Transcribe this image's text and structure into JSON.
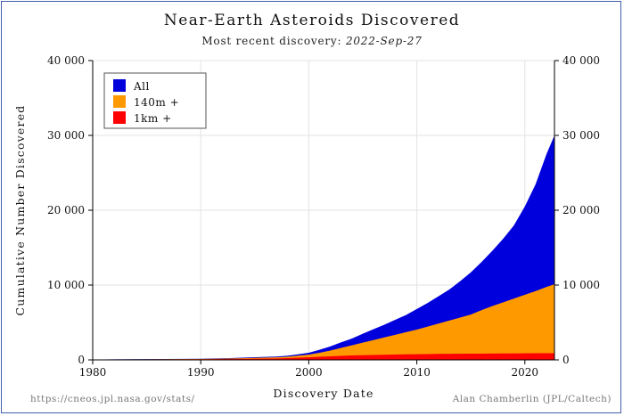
{
  "chart_data": {
    "type": "area",
    "title": "Near-Earth Asteroids Discovered",
    "subtitle_prefix": "Most recent discovery: ",
    "subtitle_date": "2022-Sep-27",
    "xlabel": "Discovery Date",
    "ylabel": "Cumulative Number Discovered",
    "xlim": [
      1980,
      2022.74
    ],
    "ylim": [
      0,
      40000
    ],
    "x_ticks": [
      1980,
      1990,
      2000,
      2010,
      2020
    ],
    "x_tick_labels": [
      "1980",
      "1990",
      "2000",
      "2010",
      "2020"
    ],
    "y_ticks": [
      0,
      10000,
      20000,
      30000,
      40000
    ],
    "y_tick_labels": [
      "0",
      "10 000",
      "20 000",
      "30 000",
      "40 000"
    ],
    "grid": true,
    "legend_position": "top-left",
    "x": [
      1980,
      1985,
      1990,
      1993,
      1995,
      1997,
      1998,
      1999,
      2000,
      2001,
      2002,
      2003,
      2004,
      2005,
      2006,
      2007,
      2008,
      2009,
      2010,
      2011,
      2012,
      2013,
      2014,
      2015,
      2016,
      2017,
      2018,
      2019,
      2020,
      2021,
      2022,
      2022.74
    ],
    "series": [
      {
        "name": "All",
        "color": "#0000dd",
        "values": [
          50,
          100,
          150,
          250,
          350,
          450,
          550,
          750,
          950,
          1350,
          1800,
          2350,
          2850,
          3500,
          4100,
          4700,
          5350,
          6000,
          6800,
          7600,
          8500,
          9400,
          10500,
          11700,
          13100,
          14600,
          16200,
          18000,
          20500,
          23500,
          27500,
          30000
        ]
      },
      {
        "name": "140m +",
        "color": "#ff9900",
        "values": [
          40,
          80,
          120,
          200,
          270,
          340,
          420,
          560,
          700,
          950,
          1250,
          1600,
          1950,
          2300,
          2650,
          3000,
          3350,
          3700,
          4050,
          4450,
          4850,
          5250,
          5650,
          6050,
          6650,
          7200,
          7700,
          8200,
          8700,
          9200,
          9750,
          10100
        ]
      },
      {
        "name": "1km +",
        "color": "#ff0000",
        "values": [
          30,
          60,
          90,
          130,
          160,
          200,
          240,
          300,
          360,
          420,
          480,
          540,
          590,
          630,
          660,
          690,
          720,
          740,
          760,
          780,
          800,
          810,
          820,
          830,
          840,
          850,
          860,
          870,
          880,
          890,
          895,
          900
        ]
      }
    ]
  },
  "footer": {
    "left": "https://cneos.jpl.nasa.gov/stats/",
    "right": "Alan Chamberlin (JPL/Caltech)"
  }
}
